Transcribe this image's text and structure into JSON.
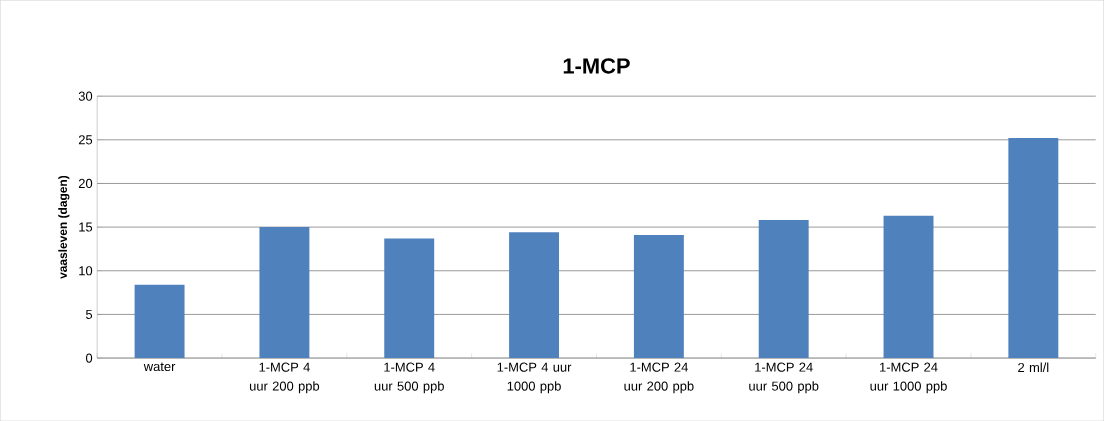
{
  "chart_data": {
    "type": "bar",
    "title": "1-MCP",
    "ylabel": "vaasleven (dagen)",
    "categories": [
      "water",
      "1-MCP 4 uur 200 ppb",
      "1-MCP 4 uur 500 ppb",
      "1-MCP 4 uur 1000 ppb",
      "1-MCP 24 uur 200 ppb",
      "1-MCP 24 uur 500 ppb",
      "1-MCP 24 uur 1000 ppb",
      "2 ml/l"
    ],
    "values": [
      8.4,
      15.0,
      13.7,
      14.4,
      14.1,
      15.8,
      16.3,
      25.2
    ],
    "color": "#4f81bd",
    "ylim": [
      0,
      30
    ],
    "yticks": [
      0,
      5,
      10,
      15,
      20,
      25,
      30
    ],
    "grid": "y"
  }
}
